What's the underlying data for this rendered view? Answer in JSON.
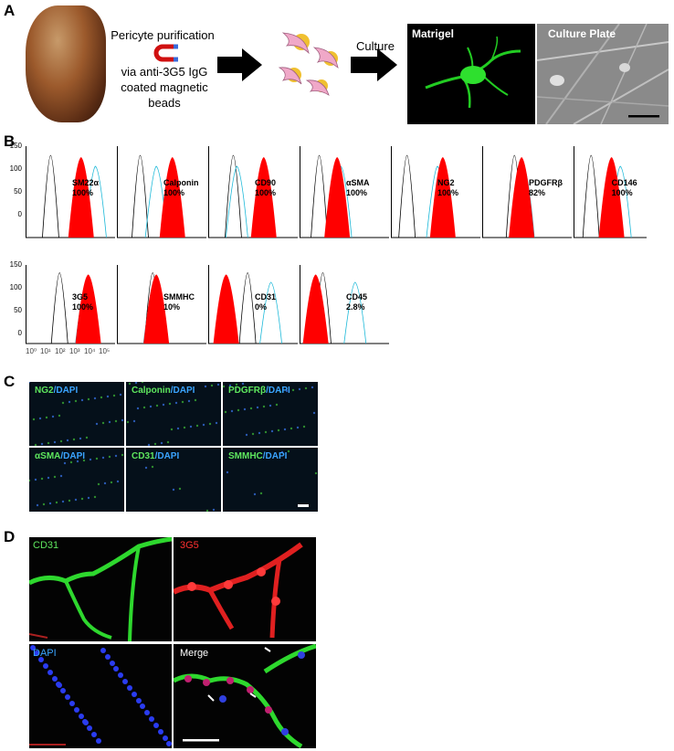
{
  "panelA": {
    "letter": "A",
    "step1_line1": "Pericyte purification",
    "step1_line2": "via anti-3G5 IgG",
    "step1_line3": "coated magnetic",
    "step1_line4": "beads",
    "culture_label": "Culture",
    "matrigel_label": "Matrigel",
    "culture_plate_label": "Culture Plate"
  },
  "panelB": {
    "letter": "B",
    "y_ticks": [
      "150",
      "100",
      "50",
      "0"
    ],
    "row1": [
      {
        "marker": "SM22α",
        "percent": "100%"
      },
      {
        "marker": "Calponin",
        "percent": "100%"
      },
      {
        "marker": "CD90",
        "percent": "100%"
      },
      {
        "marker": "αSMA",
        "percent": "100%"
      },
      {
        "marker": "NG2",
        "percent": "100%"
      },
      {
        "marker": "PDGFRβ",
        "percent": "82%"
      },
      {
        "marker": "CD146",
        "percent": "100%"
      }
    ],
    "row2": [
      {
        "marker": "3G5",
        "percent": "100%"
      },
      {
        "marker": "SMMHC",
        "percent": "10%"
      },
      {
        "marker": "CD31",
        "percent": "0%"
      },
      {
        "marker": "CD45",
        "percent": "2.8%"
      }
    ],
    "x_ticks_row2": [
      "10⁰",
      "10¹",
      "10²",
      "10³",
      "10⁴",
      "10⁵"
    ],
    "colors": {
      "filled": "#ff0000",
      "isotype": "#000000",
      "control": "#1ab8d8"
    }
  },
  "panelC": {
    "letter": "C",
    "cells": [
      {
        "green": "NG2",
        "blue": "/DAPI"
      },
      {
        "green": "Calponin",
        "blue": "/DAPI"
      },
      {
        "green": "PDGFRβ",
        "blue": "/DAPI"
      },
      {
        "green": "αSMA",
        "blue": "/DAPI"
      },
      {
        "green": "CD31",
        "blue": "/DAPI"
      },
      {
        "green": "SMMHC",
        "blue": "/DAPI"
      }
    ]
  },
  "panelD": {
    "letter": "D",
    "labels": {
      "cd31": "CD31",
      "g3g5": "3G5",
      "dapi": "DAPI",
      "merge": "Merge"
    }
  }
}
